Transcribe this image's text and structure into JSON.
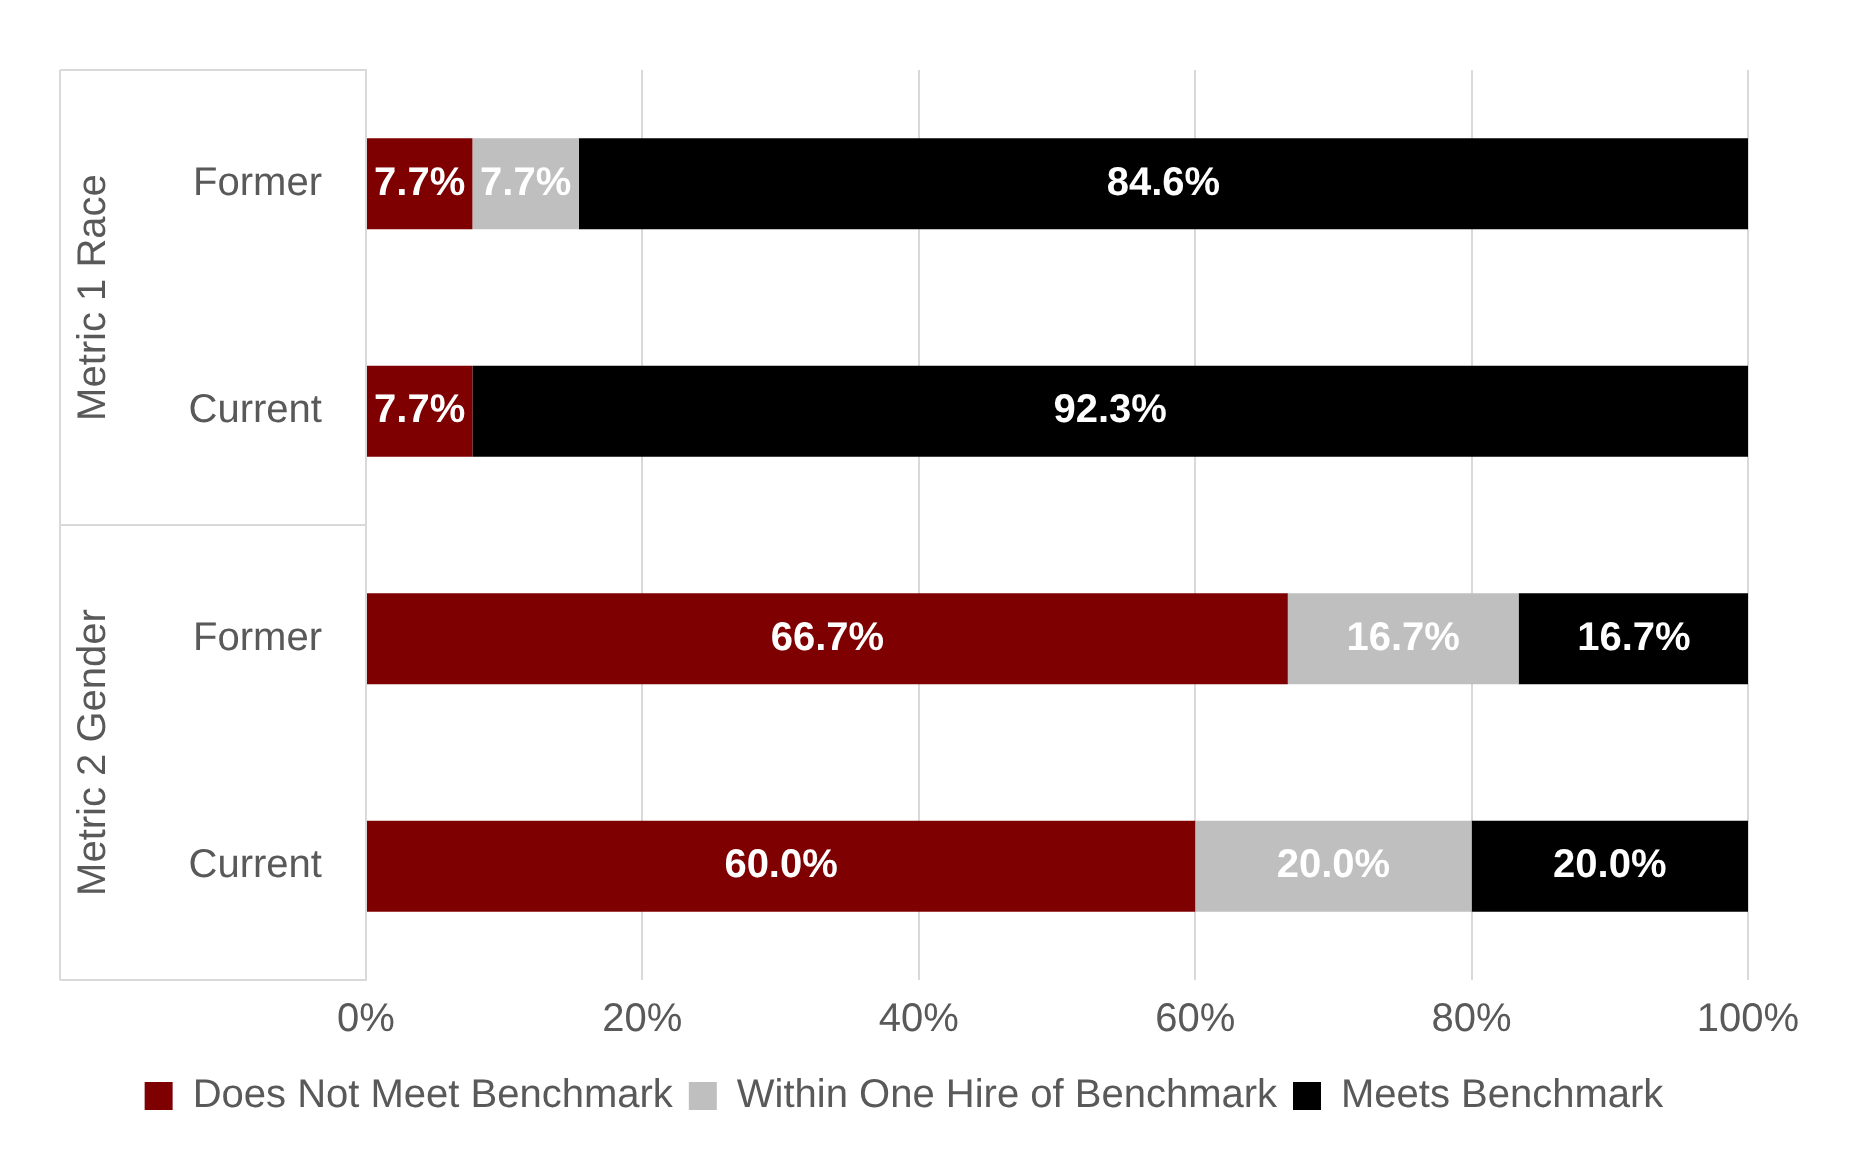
{
  "chart_data": {
    "type": "bar",
    "orientation": "horizontal",
    "stacked": true,
    "categories": [
      "Former",
      "Current",
      "Former",
      "Current"
    ],
    "annotations": [
      "Metric 1 Race",
      "Metric 2 Gender"
    ],
    "series": [
      {
        "name": "Does Not Meet Benchmark",
        "color": "#7f0000",
        "values": [
          7.7,
          7.7,
          66.7,
          60.0
        ],
        "value_labels": [
          "7.7%",
          "7.7%",
          "66.7%",
          "60.0%"
        ]
      },
      {
        "name": "Within One Hire of Benchmark",
        "color": "#bfbfbf",
        "values": [
          7.7,
          null,
          16.7,
          20.0
        ],
        "value_labels": [
          "7.7%",
          null,
          "16.7%",
          "20.0%"
        ]
      },
      {
        "name": "Meets Benchmark",
        "color": "#000000",
        "values": [
          84.6,
          92.3,
          16.7,
          20.0
        ],
        "value_labels": [
          "84.6%",
          "92.3%",
          "16.7%",
          "20.0%"
        ]
      }
    ],
    "xlim": [
      0,
      100
    ],
    "xticks": [
      {
        "value": 0,
        "label": "0%"
      },
      {
        "value": 20,
        "label": "20%"
      },
      {
        "value": 40,
        "label": "40%"
      },
      {
        "value": 60,
        "label": "60%"
      },
      {
        "value": 80,
        "label": "80%"
      },
      {
        "value": 100,
        "label": "100%"
      }
    ],
    "grid": "x",
    "legend": "bottom"
  }
}
